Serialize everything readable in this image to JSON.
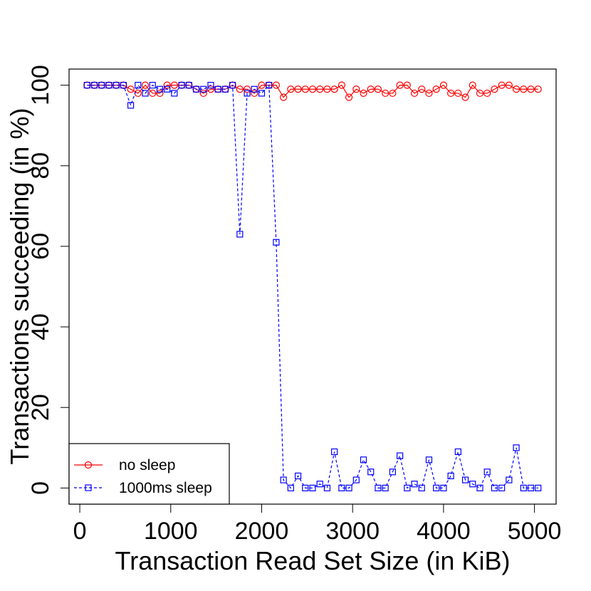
{
  "chart_data": {
    "type": "line",
    "xlabel": "Transaction Read Set Size (in KiB)",
    "ylabel": "Transactions succeeding (in %)",
    "x": [
      80,
      160,
      240,
      320,
      400,
      480,
      560,
      640,
      720,
      800,
      880,
      960,
      1040,
      1120,
      1200,
      1280,
      1360,
      1440,
      1520,
      1600,
      1680,
      1760,
      1840,
      1920,
      2000,
      2080,
      2160,
      2240,
      2320,
      2400,
      2480,
      2560,
      2640,
      2720,
      2800,
      2880,
      2960,
      3040,
      3120,
      3200,
      3280,
      3360,
      3440,
      3520,
      3600,
      3680,
      3760,
      3840,
      3920,
      4000,
      4080,
      4160,
      4240,
      4320,
      4400,
      4480,
      4560,
      4640,
      4720,
      4800,
      4880,
      4960,
      5040
    ],
    "series": [
      {
        "name": "no sleep",
        "color": "#ff0000",
        "marker": "circle",
        "linestyle": "solid",
        "values": [
          100,
          100,
          100,
          100,
          100,
          100,
          99,
          98,
          100,
          98,
          98,
          100,
          100,
          100,
          100,
          99,
          98,
          99,
          99,
          99,
          100,
          99,
          99,
          98,
          100,
          100,
          100,
          97,
          99,
          99,
          99,
          99,
          99,
          99,
          99,
          100,
          97,
          99,
          98,
          99,
          99,
          98,
          98,
          100,
          100,
          98,
          99,
          98,
          99,
          100,
          98,
          98,
          97,
          100,
          98,
          98,
          99,
          100,
          100,
          99,
          99,
          99,
          99
        ]
      },
      {
        "name": "1000ms sleep",
        "color": "#0000ff",
        "marker": "square",
        "linestyle": "dashed",
        "values": [
          100,
          100,
          100,
          100,
          100,
          100,
          95,
          100,
          98,
          100,
          99,
          99,
          98,
          100,
          100,
          99,
          99,
          100,
          99,
          99,
          100,
          63,
          98,
          99,
          98,
          100,
          61,
          2,
          0,
          3,
          0,
          0,
          1,
          0,
          9,
          0,
          0,
          2,
          7,
          4,
          0,
          0,
          4,
          8,
          0,
          1,
          0,
          7,
          0,
          0,
          3,
          9,
          2,
          1,
          0,
          4,
          0,
          0,
          2,
          10,
          0,
          0,
          0
        ]
      }
    ],
    "xlim": [
      -118,
      5238
    ],
    "ylim": [
      -4,
      104
    ],
    "xticks": [
      0,
      1000,
      2000,
      3000,
      4000,
      5000
    ],
    "yticks": [
      0,
      20,
      40,
      60,
      80,
      100
    ],
    "legend": "bottomleft"
  }
}
